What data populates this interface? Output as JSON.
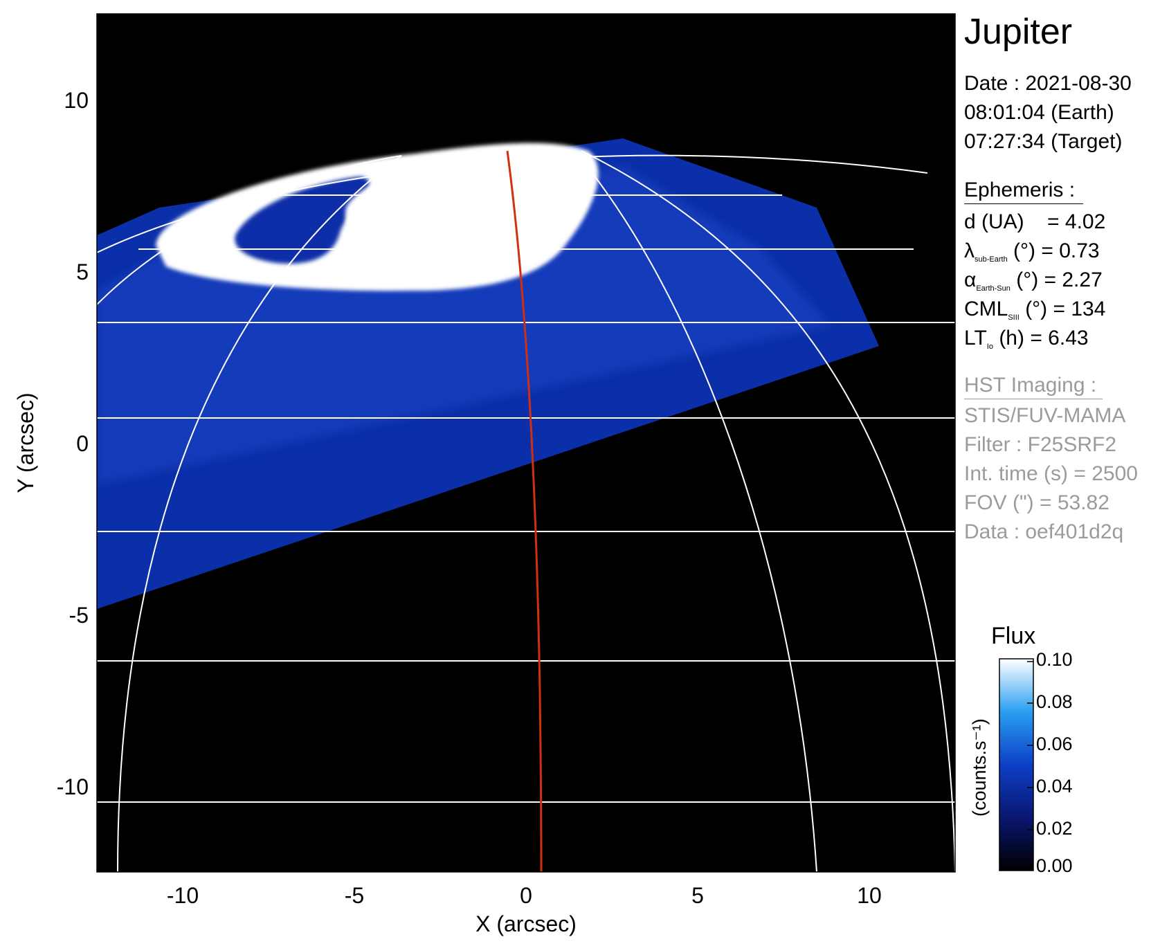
{
  "image": {
    "description_free": true,
    "axes": {
      "xlabel": "X (arcsec)",
      "ylabel": "Y (arcsec)",
      "xlim": [
        -12.5,
        12.5
      ],
      "ylim": [
        -12.5,
        12.5
      ],
      "xticks": [
        "-10",
        "-5",
        "0",
        "5",
        "10"
      ],
      "yticks": [
        "10",
        "5",
        "0",
        "-5",
        "-10"
      ]
    },
    "colors": {
      "background": "#000000",
      "grid": "#ffffff",
      "trace": "#d03010",
      "flux_low": "#0b1a7a",
      "flux_high": "#ffffff"
    }
  },
  "panel": {
    "title": "Jupiter",
    "date_line": "Date : 2021-08-30",
    "time_earth": "08:01:04 (Earth)",
    "time_target": "07:27:34 (Target)",
    "ephemeris_header": "Ephemeris :",
    "d_label": "d (UA)",
    "d_value": "= 4.02",
    "lambda_sym": "λ",
    "lambda_sub": "sub-Earth",
    "lambda_rest": " (°) = 0.73",
    "alpha_sym": "α",
    "alpha_sub": "Earth-Sun",
    "alpha_rest": " (°) = 2.27",
    "cml_sym": "CML",
    "cml_sub": "SIII",
    "cml_rest": " (°) = 134",
    "lt_sym": "LT",
    "lt_sub": "Io",
    "lt_rest": " (h) = 6.43",
    "hst_header": "HST Imaging :",
    "instrument": "STIS/FUV-MAMA",
    "filter": "Filter : F25SRF2",
    "int_time": "Int. time (s) = 2500",
    "fov": "FOV (\") = 53.82",
    "data_id": "Data : oef401d2q"
  },
  "colorbar": {
    "title": "Flux",
    "unit": "(counts.s⁻¹)",
    "ticks": [
      "0.10",
      "0.08",
      "0.06",
      "0.04",
      "0.02",
      "0.00"
    ]
  }
}
